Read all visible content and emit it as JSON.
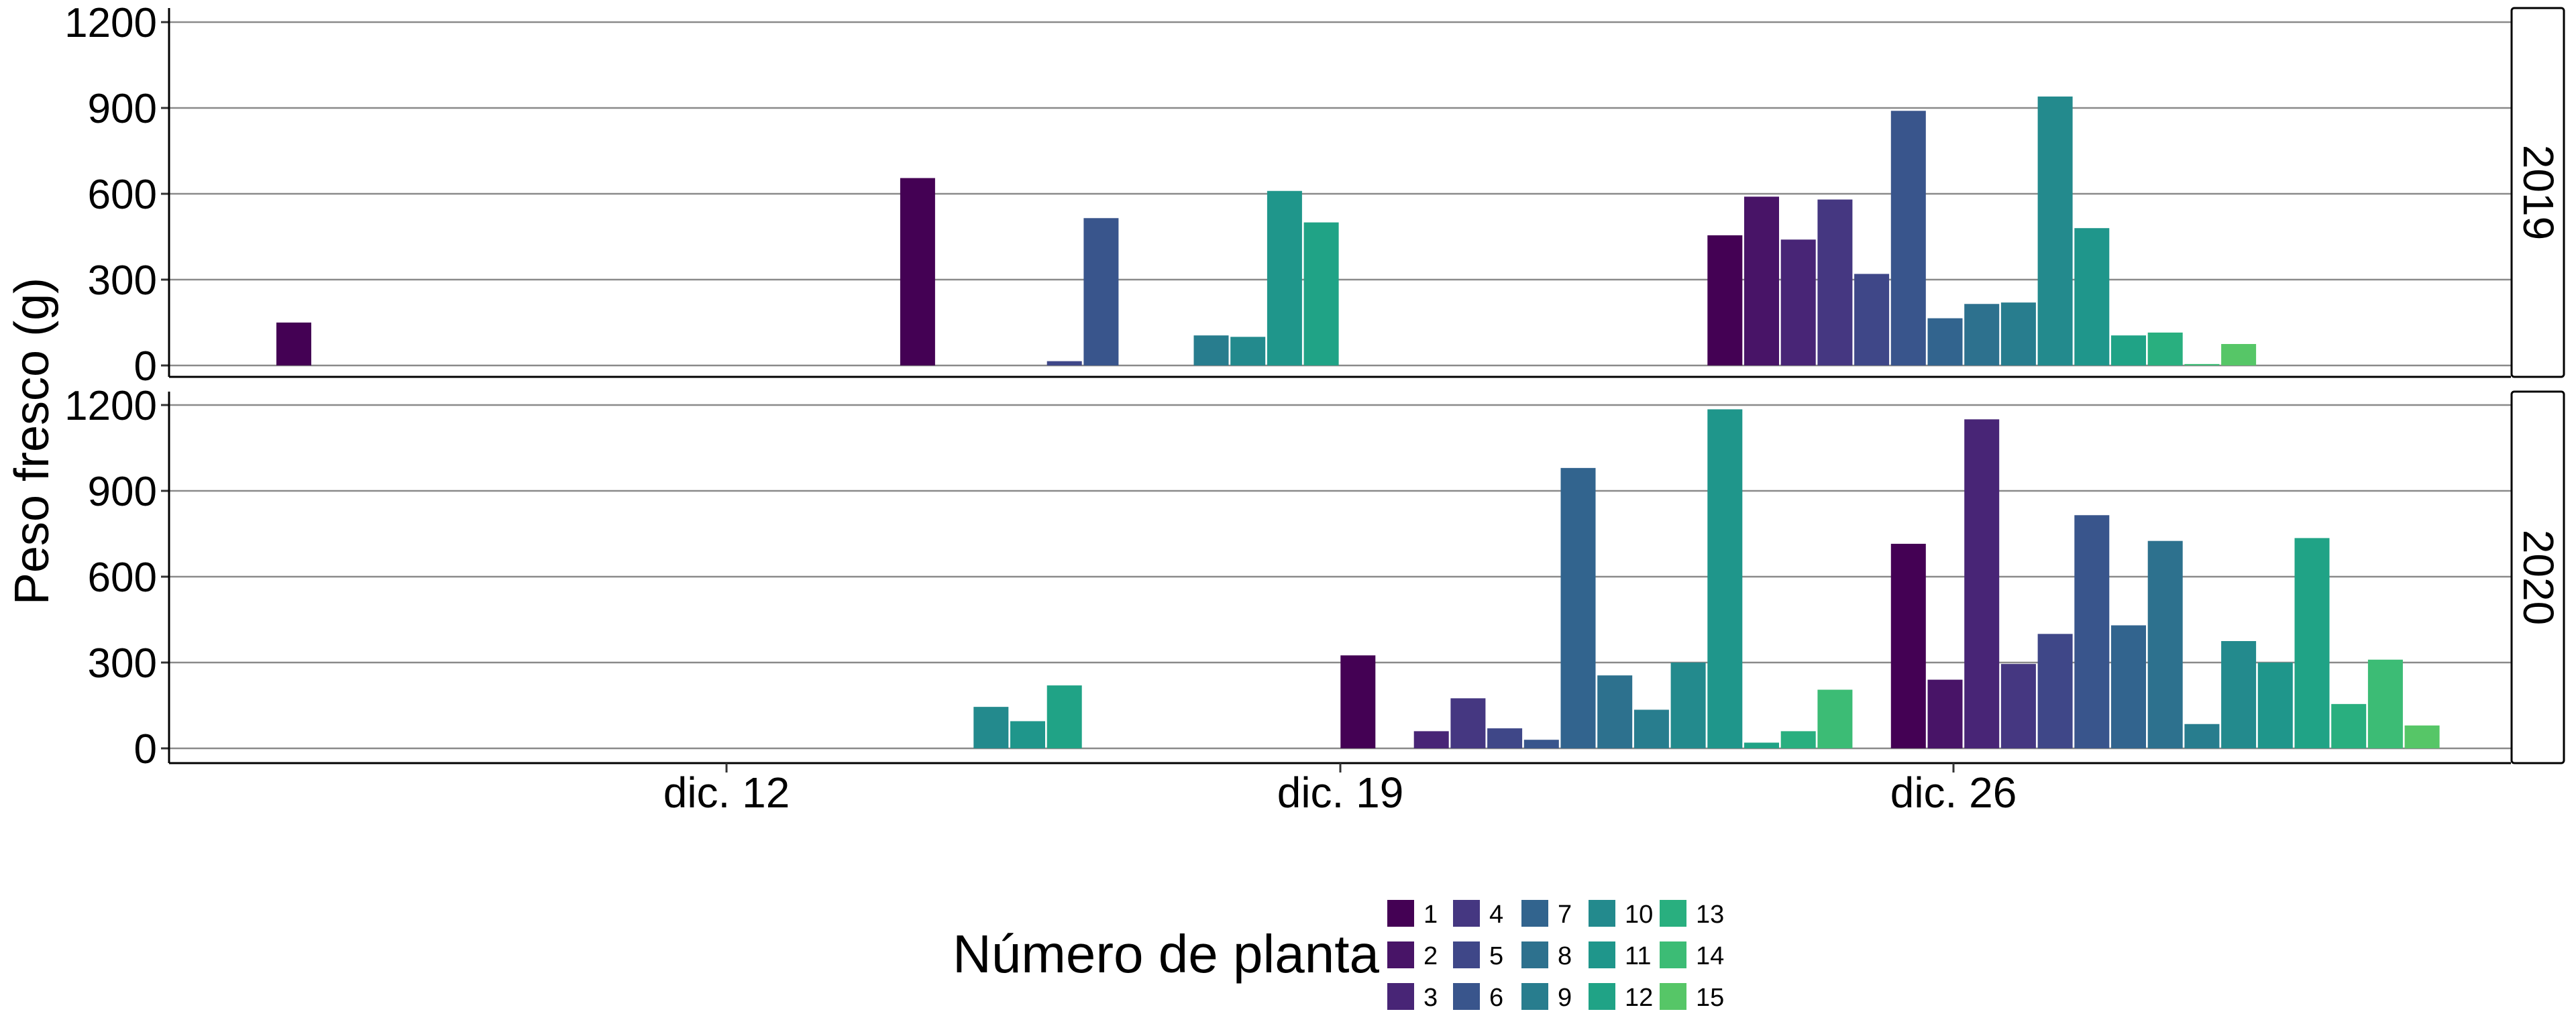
{
  "chart_data": {
    "type": "bar",
    "ylabel": "Peso fresco (g)",
    "xlabel": "",
    "ylim": [
      0,
      1250
    ],
    "y_ticks": [
      0,
      300,
      600,
      900,
      1200
    ],
    "x_ticks": [
      "dic. 12",
      "dic. 19",
      "dic. 26"
    ],
    "grid": "horizontal",
    "legend": {
      "title": "Número de planta",
      "position": "bottom",
      "entries": [
        "1",
        "2",
        "3",
        "4",
        "5",
        "6",
        "7",
        "8",
        "9",
        "10",
        "11",
        "12",
        "13",
        "14",
        "15"
      ]
    },
    "colors": [
      "#440154",
      "#481467",
      "#482576",
      "#453781",
      "#3f4788",
      "#39558c",
      "#32648e",
      "#2d718e",
      "#287d8e",
      "#238a8d",
      "#1f968b",
      "#20a386",
      "#29af7f",
      "#3cbc75",
      "#56c667"
    ],
    "panels": [
      {
        "facet": "2019",
        "bars": [
          {
            "slot": 0,
            "planta": 1,
            "value": 150
          },
          {
            "slot": 17,
            "planta": 1,
            "value": 655
          },
          {
            "slot": 21,
            "planta": 5,
            "value": 15
          },
          {
            "slot": 22,
            "planta": 6,
            "value": 515
          },
          {
            "slot": 25,
            "planta": 9,
            "value": 105
          },
          {
            "slot": 26,
            "planta": 10,
            "value": 100
          },
          {
            "slot": 27,
            "planta": 11,
            "value": 610
          },
          {
            "slot": 28,
            "planta": 12,
            "value": 500
          },
          {
            "slot": 39,
            "planta": 1,
            "value": 455
          },
          {
            "slot": 40,
            "planta": 2,
            "value": 590
          },
          {
            "slot": 41,
            "planta": 3,
            "value": 440
          },
          {
            "slot": 42,
            "planta": 4,
            "value": 580
          },
          {
            "slot": 43,
            "planta": 5,
            "value": 320
          },
          {
            "slot": 44,
            "planta": 6,
            "value": 890
          },
          {
            "slot": 45,
            "planta": 7,
            "value": 165
          },
          {
            "slot": 46,
            "planta": 8,
            "value": 215
          },
          {
            "slot": 47,
            "planta": 9,
            "value": 220
          },
          {
            "slot": 48,
            "planta": 10,
            "value": 940
          },
          {
            "slot": 49,
            "planta": 11,
            "value": 480
          },
          {
            "slot": 50,
            "planta": 12,
            "value": 105
          },
          {
            "slot": 51,
            "planta": 13,
            "value": 115
          },
          {
            "slot": 52,
            "planta": 14,
            "value": 5
          },
          {
            "slot": 53,
            "planta": 15,
            "value": 75
          }
        ]
      },
      {
        "facet": "2020",
        "bars": [
          {
            "slot": 19,
            "planta": 10,
            "value": 145
          },
          {
            "slot": 20,
            "planta": 11,
            "value": 95
          },
          {
            "slot": 21,
            "planta": 12,
            "value": 220
          },
          {
            "slot": 29,
            "planta": 1,
            "value": 325
          },
          {
            "slot": 31,
            "planta": 3,
            "value": 60
          },
          {
            "slot": 32,
            "planta": 4,
            "value": 175
          },
          {
            "slot": 33,
            "planta": 5,
            "value": 70
          },
          {
            "slot": 34,
            "planta": 6,
            "value": 30
          },
          {
            "slot": 35,
            "planta": 7,
            "value": 980
          },
          {
            "slot": 36,
            "planta": 8,
            "value": 255
          },
          {
            "slot": 37,
            "planta": 9,
            "value": 135
          },
          {
            "slot": 38,
            "planta": 10,
            "value": 300
          },
          {
            "slot": 39,
            "planta": 11,
            "value": 1185
          },
          {
            "slot": 40,
            "planta": 12,
            "value": 20
          },
          {
            "slot": 41,
            "planta": 13,
            "value": 60
          },
          {
            "slot": 42,
            "planta": 14,
            "value": 205
          },
          {
            "slot": 44,
            "planta": 1,
            "value": 715
          },
          {
            "slot": 45,
            "planta": 2,
            "value": 240
          },
          {
            "slot": 46,
            "planta": 3,
            "value": 1150
          },
          {
            "slot": 47,
            "planta": 4,
            "value": 295
          },
          {
            "slot": 48,
            "planta": 5,
            "value": 400
          },
          {
            "slot": 49,
            "planta": 6,
            "value": 815
          },
          {
            "slot": 50,
            "planta": 7,
            "value": 430
          },
          {
            "slot": 51,
            "planta": 8,
            "value": 725
          },
          {
            "slot": 52,
            "planta": 9,
            "value": 85
          },
          {
            "slot": 53,
            "planta": 10,
            "value": 375
          },
          {
            "slot": 54,
            "planta": 11,
            "value": 300
          },
          {
            "slot": 55,
            "planta": 12,
            "value": 735
          },
          {
            "slot": 56,
            "planta": 13,
            "value": 155
          },
          {
            "slot": 57,
            "planta": 14,
            "value": 310
          },
          {
            "slot": 58,
            "planta": 15,
            "value": 80
          }
        ]
      }
    ]
  }
}
